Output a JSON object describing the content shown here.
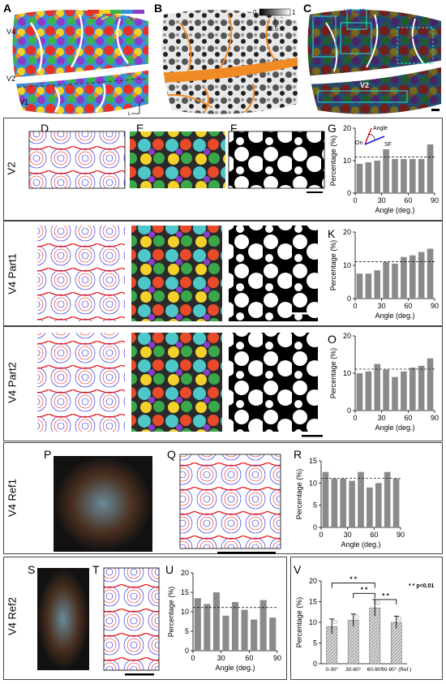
{
  "panel_letters": [
    "A",
    "B",
    "C",
    "D",
    "E",
    "F",
    "G",
    "H",
    "I",
    "J",
    "K",
    "L",
    "M",
    "N",
    "O",
    "P",
    "Q",
    "R",
    "S",
    "T",
    "U",
    "V"
  ],
  "top": {
    "a_labels": {
      "v4": "V4",
      "v2": "V2",
      "v1": "V1",
      "axis_a": "A",
      "axis_l": "L"
    },
    "b_scale": {
      "min": "0",
      "max": "1",
      "mid": "0.5"
    },
    "c_labels": {
      "ref2": "V4 ref2",
      "part2": "V4 part2",
      "part1": "V4 part1",
      "ref1": "V4 ref1",
      "v2": "V2"
    }
  },
  "rows": [
    {
      "title": "V2"
    },
    {
      "title": "V4 Part1"
    },
    {
      "title": "V4 Part2"
    },
    {
      "title": "V4 Ref1"
    },
    {
      "title": "V4 Ref2"
    }
  ],
  "g_inset": {
    "angle": "Angle",
    "on": "On",
    "sf": "SF"
  },
  "axis": {
    "ylabel": "Percentage (%)",
    "xlabel": "Angle (deg.)"
  },
  "chart_data": [
    {
      "type": "bar",
      "panel": "G",
      "x": [
        5,
        15,
        25,
        35,
        45,
        55,
        65,
        75,
        85
      ],
      "values": [
        9,
        9.5,
        10,
        13.5,
        10.5,
        10.5,
        10.5,
        10.5,
        15
      ],
      "ylim": [
        0,
        20
      ],
      "yticks": [
        0,
        10,
        20
      ],
      "xticks": [
        0,
        30,
        60,
        90
      ],
      "reference_line": 11.1,
      "xlabel": "Angle (deg.)",
      "ylabel": "Percentage (%)"
    },
    {
      "type": "bar",
      "panel": "K",
      "x": [
        5,
        15,
        25,
        35,
        45,
        55,
        65,
        75,
        85
      ],
      "values": [
        7.5,
        7.5,
        8.5,
        11,
        10.5,
        12.5,
        13,
        14,
        15
      ],
      "ylim": [
        0,
        20
      ],
      "yticks": [
        0,
        10,
        20
      ],
      "xticks": [
        0,
        30,
        60,
        90
      ],
      "reference_line": 11.1,
      "xlabel": "Angle (deg.)",
      "ylabel": "Percentage (%)"
    },
    {
      "type": "bar",
      "panel": "O",
      "x": [
        5,
        15,
        25,
        35,
        45,
        55,
        65,
        75,
        85
      ],
      "values": [
        10,
        10.5,
        12.5,
        11,
        9,
        10.5,
        11.5,
        12,
        14
      ],
      "ylim": [
        0,
        20
      ],
      "yticks": [
        0,
        10,
        20
      ],
      "xticks": [
        0,
        30,
        60,
        90
      ],
      "reference_line": 11.1,
      "xlabel": "Angle (deg.)",
      "ylabel": "Percentage (%)"
    },
    {
      "type": "bar",
      "panel": "R",
      "x": [
        5,
        15,
        25,
        35,
        45,
        55,
        65,
        75,
        85
      ],
      "values": [
        12.5,
        11,
        11,
        10.5,
        12.5,
        9,
        10,
        12.5,
        11
      ],
      "ylim": [
        0,
        15
      ],
      "yticks": [
        0,
        5,
        10,
        15
      ],
      "xticks": [
        0,
        30,
        60,
        90
      ],
      "reference_line": 11.1,
      "xlabel": "Angle (deg.)",
      "ylabel": "Percentage (%)"
    },
    {
      "type": "bar",
      "panel": "U",
      "x": [
        5,
        15,
        25,
        35,
        45,
        55,
        65,
        75,
        85
      ],
      "values": [
        13.5,
        12,
        15,
        9,
        12.5,
        10.5,
        8,
        13,
        8.5
      ],
      "ylim": [
        0,
        20
      ],
      "yticks": [
        0,
        5,
        10,
        15,
        20
      ],
      "xticks": [
        0,
        30,
        60,
        90
      ],
      "reference_line": 11.1,
      "xlabel": "Angle (deg.)",
      "ylabel": "Percentage (%)"
    },
    {
      "type": "bar",
      "panel": "V",
      "categories": [
        "0-30°",
        "30-60°",
        "60-90°",
        "60-90° (Ref.)"
      ],
      "values": [
        9,
        10.5,
        13.5,
        10
      ],
      "errors": [
        1.8,
        1.5,
        2,
        1.5
      ],
      "ylim": [
        0,
        20
      ],
      "yticks": [
        0,
        5,
        10,
        15,
        20
      ],
      "ylabel": "Percentage (%)",
      "significance": "* * p<0.01",
      "sig_marks": [
        "* *",
        "* *",
        "* *"
      ]
    }
  ],
  "colors": {
    "bar": "#8a8a8a",
    "orange": "#f08a24",
    "red": "#e8161b",
    "blue": "#1b1bd8",
    "cyan": "#28c8c8"
  }
}
